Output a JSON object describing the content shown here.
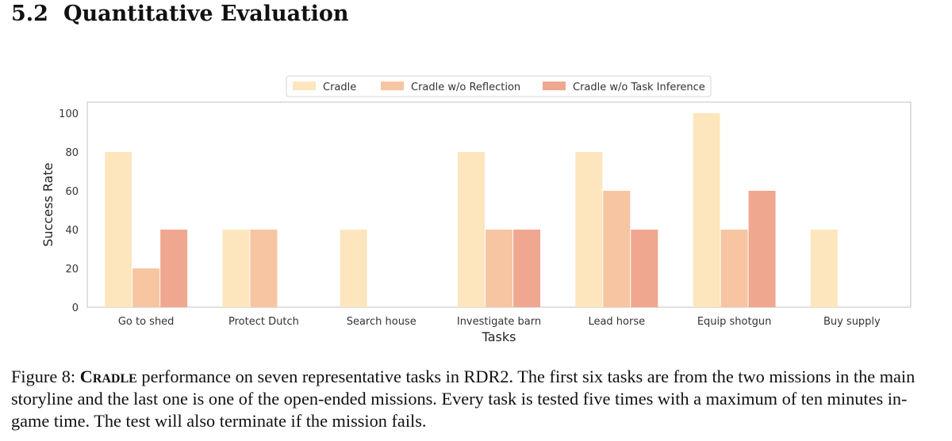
{
  "section": {
    "number": "5.2",
    "title": "Quantitative Evaluation"
  },
  "colors": {
    "cradle": "#fde6bd",
    "no_reflection": "#f7c5a2",
    "no_task_inference": "#f0a78f",
    "frame": "#cfcfcf"
  },
  "chart_data": {
    "type": "bar",
    "categories": [
      "Go to shed",
      "Protect Dutch",
      "Search house",
      "Investigate barn",
      "Lead horse",
      "Equip shotgun",
      "Buy supply"
    ],
    "series": [
      {
        "name": "Cradle",
        "values": [
          80,
          40,
          40,
          80,
          80,
          100,
          40
        ]
      },
      {
        "name": "Cradle w/o Reflection",
        "values": [
          20,
          40,
          0,
          40,
          60,
          40,
          0
        ]
      },
      {
        "name": "Cradle w/o Task Inference",
        "values": [
          40,
          0,
          0,
          40,
          40,
          60,
          0
        ]
      }
    ],
    "xlabel": "Tasks",
    "ylabel": "Success Rate",
    "ylim": [
      0,
      100
    ],
    "yticks": [
      0,
      20,
      40,
      60,
      80,
      100
    ],
    "grid": false,
    "legend_position": "top-center"
  },
  "caption": {
    "label": "Figure 8: ",
    "name": "Cradle",
    "text": " performance on seven representative tasks in RDR2. The first six tasks are from the two missions in the main storyline and the last one is one of the open-ended missions. Every task is tested five times with a maximum of ten minutes in-game time. The test will also terminate if the mission fails."
  }
}
